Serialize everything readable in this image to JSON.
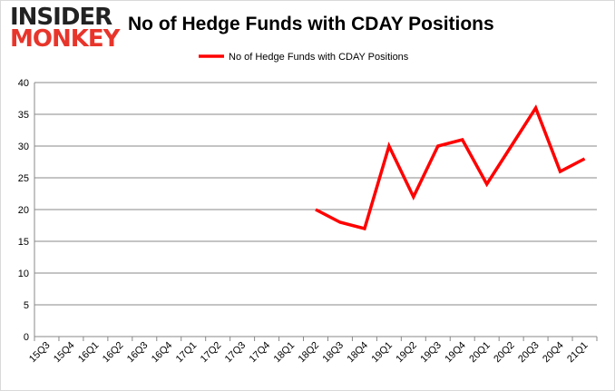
{
  "logo": {
    "line1": "INSIDER",
    "line2": "MONKEY"
  },
  "chart_data": {
    "type": "line",
    "title": "No of Hedge Funds with CDAY Positions",
    "xlabel": "",
    "ylabel": "",
    "categories": [
      "15Q3",
      "15Q4",
      "16Q1",
      "16Q2",
      "16Q3",
      "16Q4",
      "17Q1",
      "17Q2",
      "17Q3",
      "17Q4",
      "18Q1",
      "18Q2",
      "18Q3",
      "18Q4",
      "19Q1",
      "19Q2",
      "19Q3",
      "19Q4",
      "20Q1",
      "20Q2",
      "20Q3",
      "20Q4",
      "21Q1"
    ],
    "series": [
      {
        "name": "No of Hedge Funds with CDAY Positions",
        "color": "#ff0000",
        "values": [
          null,
          null,
          null,
          null,
          null,
          null,
          null,
          null,
          null,
          null,
          null,
          20,
          18,
          17,
          30,
          22,
          30,
          31,
          24,
          30,
          36,
          26,
          28
        ]
      }
    ],
    "ylim": [
      0,
      40
    ],
    "yticks": [
      0,
      5,
      10,
      15,
      20,
      25,
      30,
      35,
      40
    ],
    "grid": true,
    "legend": "top"
  }
}
